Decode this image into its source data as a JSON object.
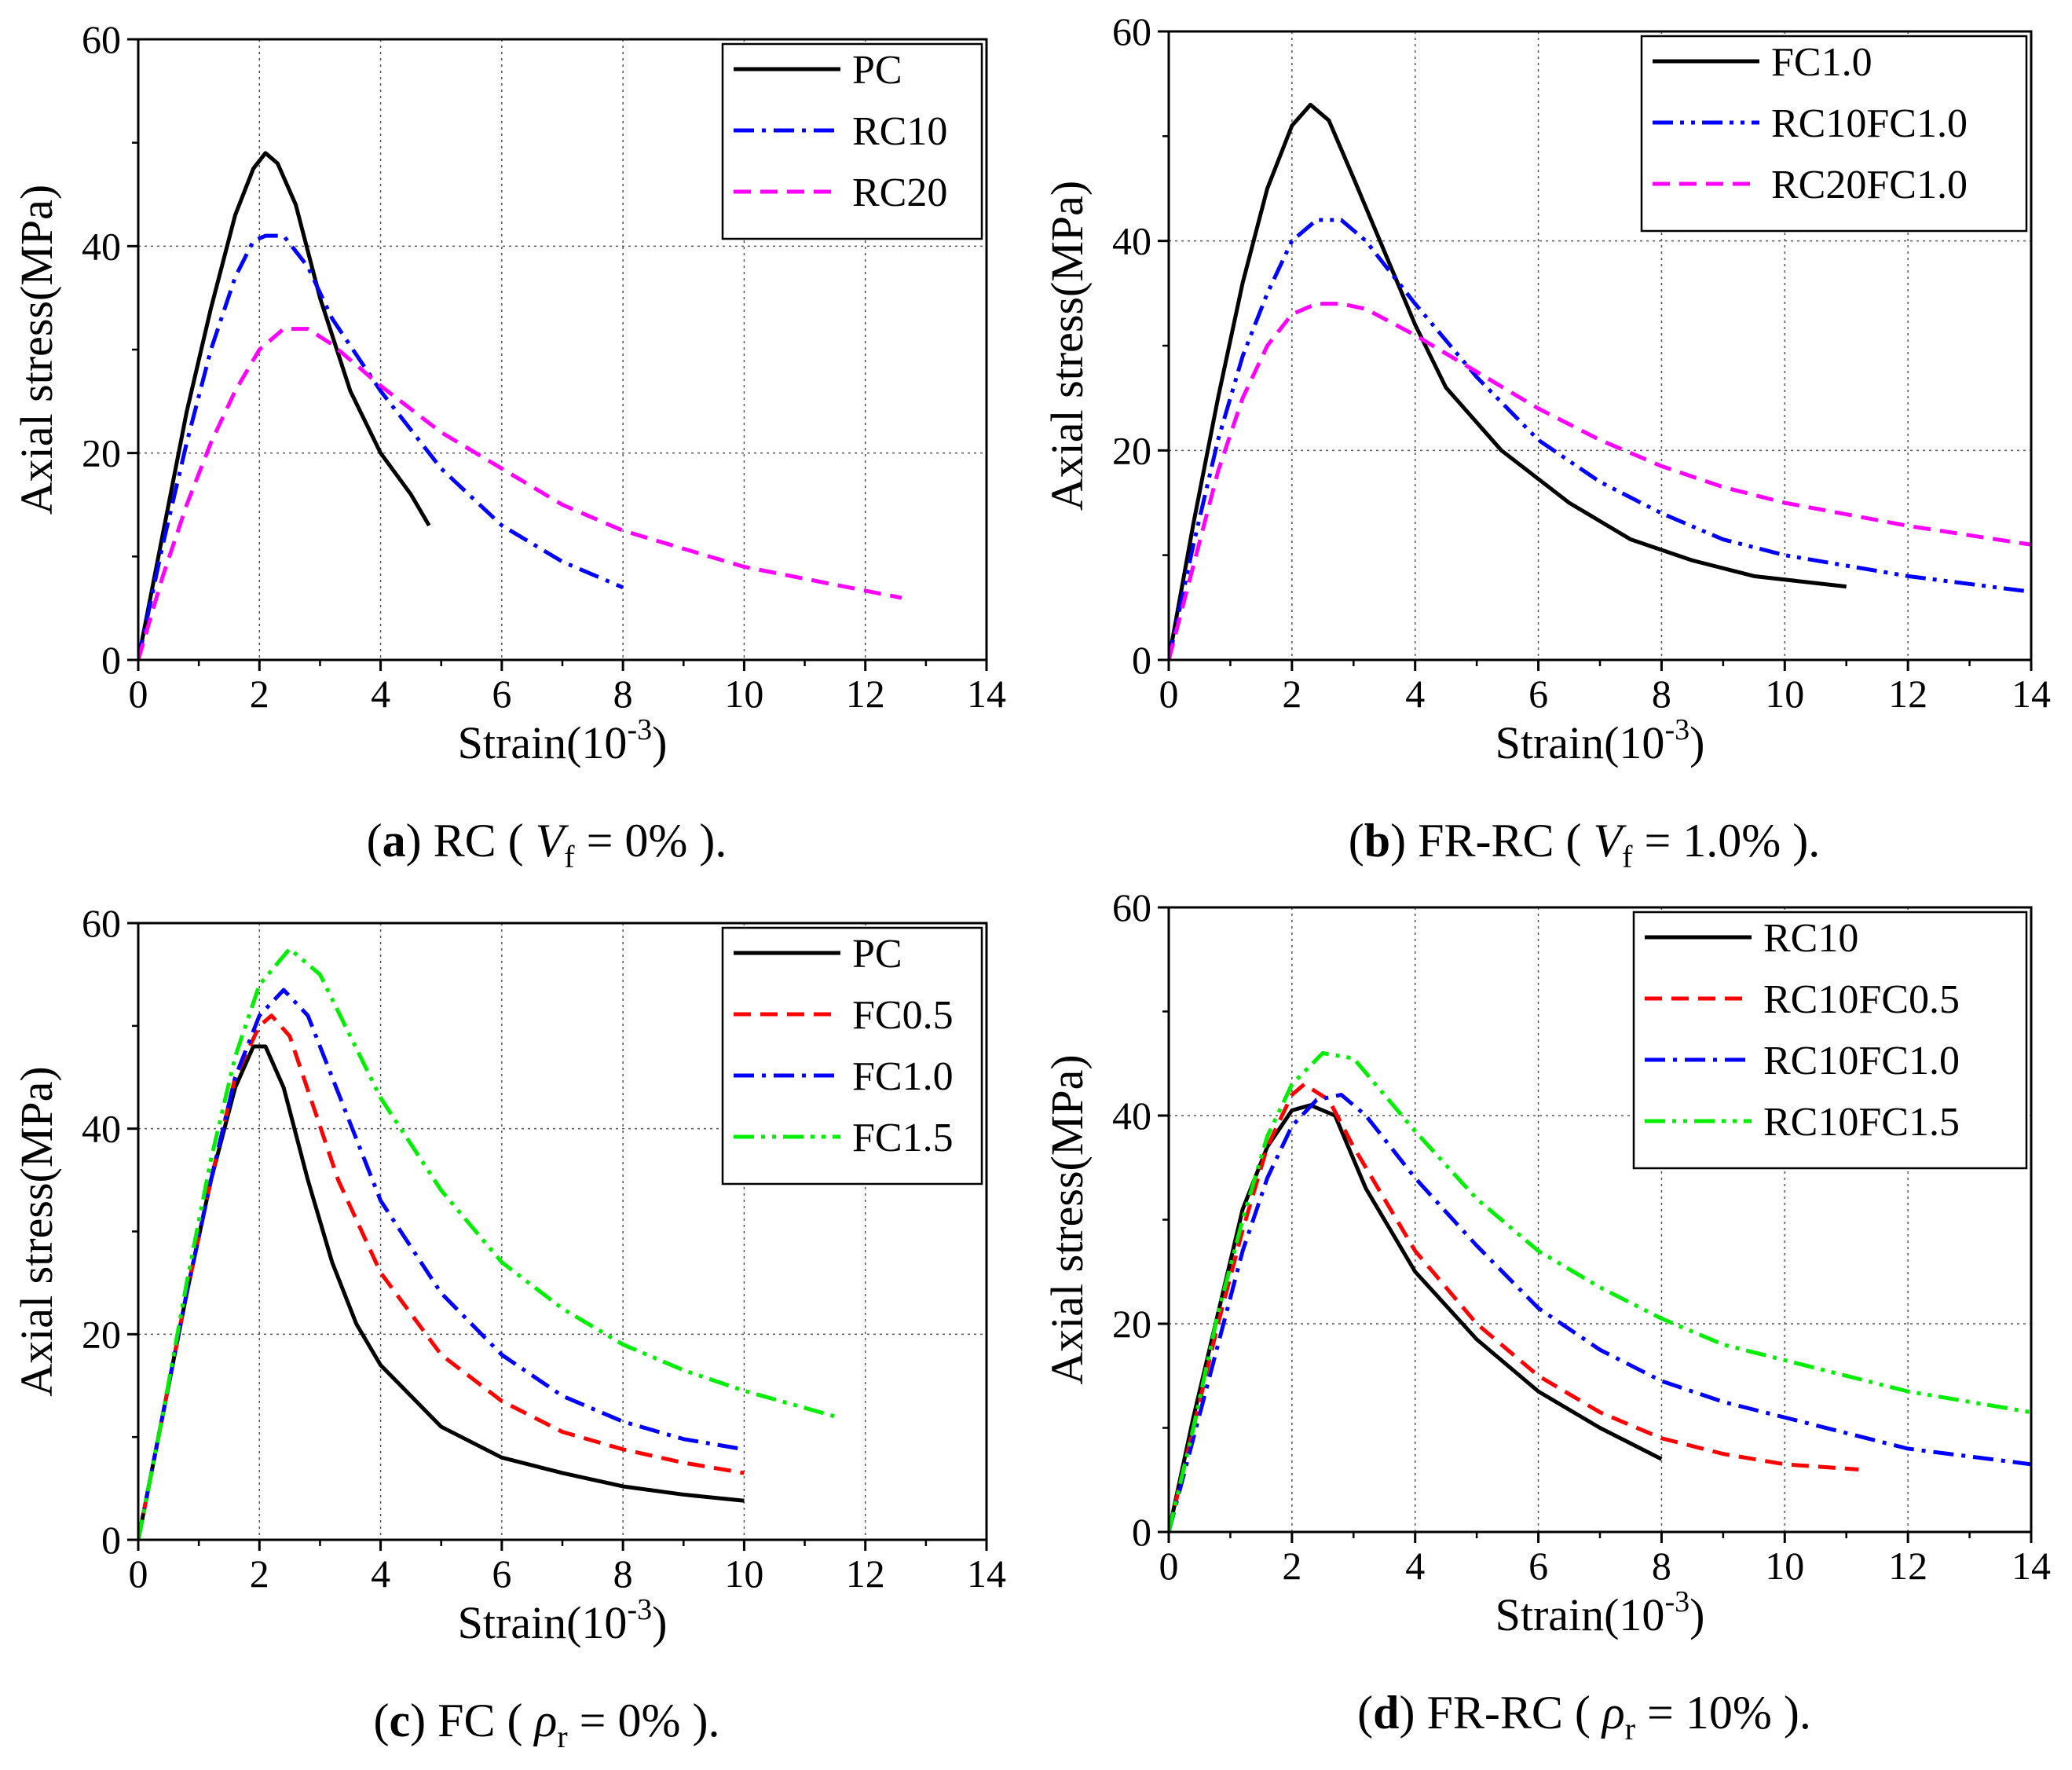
{
  "chart_data": [
    {
      "type": "line",
      "panel_label": "a",
      "caption": "RC (",
      "caption_var": "V",
      "caption_sub": "f",
      "caption_value": "= 0% ).",
      "xlabel": "Strain(10",
      "xlabel_exp": "-3",
      "xlabel_end": ")",
      "ylabel": "Axial stress(MPa)",
      "xlim": [
        0,
        14
      ],
      "ylim": [
        0,
        60
      ],
      "xticks": [
        "0",
        "2",
        "4",
        "6",
        "8",
        "10",
        "12",
        "14"
      ],
      "yticks": [
        "0",
        "20",
        "40",
        "60"
      ],
      "grid": true,
      "legend_position": "top-right",
      "series": [
        {
          "name": "PC",
          "color": "#000000",
          "dash": "solid",
          "x": [
            0,
            0.4,
            0.8,
            1.2,
            1.6,
            1.9,
            2.1,
            2.3,
            2.6,
            3.0,
            3.5,
            4.0,
            4.5,
            4.8
          ],
          "y": [
            0,
            12,
            24,
            34,
            43,
            47.5,
            49,
            48,
            44,
            35,
            26,
            20,
            16,
            13
          ]
        },
        {
          "name": "RC10",
          "color": "#0000ff",
          "dash": "dashdot",
          "x": [
            0,
            0.4,
            0.8,
            1.2,
            1.6,
            1.9,
            2.1,
            2.4,
            2.8,
            3.2,
            4.0,
            5.0,
            6.0,
            7.0,
            8.0
          ],
          "y": [
            0,
            11,
            21,
            30,
            37,
            40.5,
            41,
            41,
            38,
            33,
            26,
            18.5,
            13,
            9.5,
            7
          ]
        },
        {
          "name": "RC20",
          "color": "#ff00ff",
          "dash": "dashed",
          "x": [
            0,
            0.4,
            0.8,
            1.2,
            1.6,
            2.0,
            2.4,
            2.8,
            3.2,
            4.0,
            5.0,
            6.0,
            7.0,
            8.0,
            10.0,
            12.6
          ],
          "y": [
            0,
            8,
            15,
            21,
            26,
            30,
            32,
            32,
            30.5,
            26.5,
            22,
            18.5,
            15,
            12.5,
            9,
            6
          ]
        }
      ]
    },
    {
      "type": "line",
      "panel_label": "b",
      "caption": "FR-RC (",
      "caption_var": "V",
      "caption_sub": "f",
      "caption_value": "= 1.0% ).",
      "xlabel": "Strain(10",
      "xlabel_exp": "-3",
      "xlabel_end": ")",
      "ylabel": "Axial stress(MPa)",
      "xlim": [
        0,
        14
      ],
      "ylim": [
        0,
        60
      ],
      "xticks": [
        "0",
        "2",
        "4",
        "6",
        "8",
        "10",
        "12",
        "14"
      ],
      "yticks": [
        "0",
        "20",
        "40",
        "60"
      ],
      "grid": true,
      "legend_position": "top-right",
      "series": [
        {
          "name": "FC1.0",
          "color": "#000000",
          "dash": "solid",
          "x": [
            0,
            0.4,
            0.8,
            1.2,
            1.6,
            2.0,
            2.3,
            2.6,
            3.0,
            3.5,
            4.0,
            4.5,
            5.4,
            6.5,
            7.5,
            8.5,
            9.5,
            11.0
          ],
          "y": [
            0,
            13,
            25,
            36,
            45,
            51,
            53,
            51.5,
            46,
            39,
            32,
            26,
            20,
            15,
            11.5,
            9.5,
            8,
            7
          ]
        },
        {
          "name": "RC10FC1.0",
          "color": "#0000ff",
          "dash": "dashdotdot",
          "x": [
            0,
            0.4,
            0.8,
            1.2,
            1.6,
            2.0,
            2.4,
            2.8,
            3.2,
            4.0,
            5.0,
            6.0,
            7.0,
            8.0,
            9.0,
            10.0,
            12.0,
            14.0
          ],
          "y": [
            0,
            11,
            21,
            29,
            35,
            40,
            42,
            42,
            40,
            34,
            27,
            21,
            17,
            14,
            11.5,
            10,
            8,
            6.5
          ]
        },
        {
          "name": "RC20FC1.0",
          "color": "#ff00ff",
          "dash": "dashed",
          "x": [
            0,
            0.4,
            0.8,
            1.2,
            1.6,
            2.0,
            2.4,
            2.8,
            3.2,
            4.0,
            5.0,
            6.0,
            7.0,
            8.0,
            9.0,
            10.0,
            12.0,
            14.0
          ],
          "y": [
            0,
            9,
            18,
            25,
            30,
            33,
            34,
            34,
            33.5,
            31,
            27.5,
            24,
            21,
            18.5,
            16.5,
            15,
            12.8,
            11
          ]
        }
      ]
    },
    {
      "type": "line",
      "panel_label": "c",
      "caption": "FC (",
      "caption_var": "ρ",
      "caption_sub": "r",
      "caption_value": "= 0% ).",
      "xlabel": "Strain(10",
      "xlabel_exp": "-3",
      "xlabel_end": ")",
      "ylabel": "Axial stress(MPa)",
      "xlim": [
        0,
        14
      ],
      "ylim": [
        0,
        60
      ],
      "xticks": [
        "0",
        "2",
        "4",
        "6",
        "8",
        "10",
        "12",
        "14"
      ],
      "yticks": [
        "0",
        "20",
        "40",
        "60"
      ],
      "grid": true,
      "legend_position": "top-right",
      "series": [
        {
          "name": "PC",
          "color": "#000000",
          "dash": "solid",
          "x": [
            0,
            0.4,
            0.8,
            1.2,
            1.6,
            1.9,
            2.1,
            2.4,
            2.8,
            3.2,
            3.6,
            4.0,
            5.0,
            6.0,
            7.0,
            8.0,
            9.0,
            10.0
          ],
          "y": [
            0,
            12,
            24,
            35,
            44,
            48,
            48,
            44,
            35,
            27,
            21,
            17,
            11,
            8,
            6.5,
            5.2,
            4.4,
            3.8
          ]
        },
        {
          "name": "FC0.5",
          "color": "#ff0000",
          "dash": "dashed",
          "x": [
            0,
            0.4,
            0.8,
            1.2,
            1.6,
            2.0,
            2.2,
            2.5,
            2.9,
            3.3,
            4.0,
            5.0,
            6.0,
            7.0,
            8.0,
            9.0,
            10.0
          ],
          "y": [
            0,
            12,
            24,
            35,
            45,
            50,
            51,
            49,
            42,
            35,
            26,
            18,
            13.5,
            10.5,
            8.8,
            7.5,
            6.5
          ]
        },
        {
          "name": "FC1.0",
          "color": "#0000ff",
          "dash": "dashdot",
          "x": [
            0,
            0.4,
            0.8,
            1.2,
            1.6,
            2.0,
            2.4,
            2.8,
            3.2,
            4.0,
            5.0,
            6.0,
            7.0,
            8.0,
            9.0,
            10.0
          ],
          "y": [
            0,
            12,
            24,
            35,
            45,
            51,
            53.5,
            51,
            45,
            33,
            24,
            18,
            14,
            11.5,
            9.8,
            8.8
          ]
        },
        {
          "name": "FC1.5",
          "color": "#00ee00",
          "dash": "dashdotdot",
          "x": [
            0,
            0.4,
            0.8,
            1.2,
            1.6,
            2.0,
            2.5,
            3.0,
            3.5,
            4.0,
            5.0,
            6.0,
            7.0,
            8.0,
            9.0,
            10.0,
            11.5
          ],
          "y": [
            0,
            12,
            25,
            37,
            47,
            54,
            57.5,
            55,
            49,
            43,
            34,
            27,
            22.5,
            19,
            16.5,
            14.5,
            12
          ]
        }
      ]
    },
    {
      "type": "line",
      "panel_label": "d",
      "caption": "FR-RC (",
      "caption_var": "ρ",
      "caption_sub": "r",
      "caption_value": "= 10% ).",
      "xlabel": "Strain(10",
      "xlabel_exp": "-3",
      "xlabel_end": ")",
      "ylabel": "Axial stress(MPa)",
      "xlim": [
        0,
        14
      ],
      "ylim": [
        0,
        60
      ],
      "xticks": [
        "0",
        "2",
        "4",
        "6",
        "8",
        "10",
        "12",
        "14"
      ],
      "yticks": [
        "0",
        "20",
        "40",
        "60"
      ],
      "grid": true,
      "legend_position": "top-right",
      "series": [
        {
          "name": "RC10",
          "color": "#000000",
          "dash": "solid",
          "x": [
            0,
            0.4,
            0.8,
            1.2,
            1.6,
            2.0,
            2.3,
            2.7,
            3.2,
            4.0,
            5.0,
            6.0,
            7.0,
            8.0
          ],
          "y": [
            0,
            11,
            21,
            31,
            37,
            40.5,
            41,
            40,
            33,
            25,
            18.5,
            13.5,
            10,
            7
          ]
        },
        {
          "name": "RC10FC0.5",
          "color": "#ff0000",
          "dash": "dashed",
          "x": [
            0,
            0.4,
            0.8,
            1.2,
            1.6,
            2.0,
            2.2,
            2.6,
            3.0,
            4.0,
            5.0,
            6.0,
            7.0,
            8.0,
            9.0,
            10.0,
            11.2
          ],
          "y": [
            0,
            10,
            20,
            29,
            37,
            42,
            43,
            41.5,
            37,
            27,
            20,
            15,
            11.5,
            9,
            7.5,
            6.5,
            6
          ]
        },
        {
          "name": "RC10FC1.0",
          "color": "#0000ff",
          "dash": "dashdot",
          "x": [
            0,
            0.4,
            0.8,
            1.2,
            1.6,
            2.0,
            2.4,
            2.8,
            3.2,
            4.0,
            5.0,
            6.0,
            7.0,
            8.0,
            9.0,
            10.0,
            12.0,
            14.0
          ],
          "y": [
            0,
            9,
            18,
            27,
            34,
            39,
            41.5,
            42,
            40,
            34,
            27.5,
            21.5,
            17.5,
            14.5,
            12.5,
            11,
            8,
            6.5
          ]
        },
        {
          "name": "RC10FC1.5",
          "color": "#00ee00",
          "dash": "dashdotdot",
          "x": [
            0,
            0.4,
            0.8,
            1.2,
            1.6,
            2.0,
            2.5,
            3.0,
            3.5,
            4.0,
            5.0,
            6.0,
            7.0,
            8.0,
            9.0,
            10.0,
            12.0,
            14.0
          ],
          "y": [
            0,
            10,
            21,
            30,
            38,
            43,
            46,
            45.5,
            42,
            38.5,
            32,
            27,
            23.5,
            20.5,
            18,
            16.5,
            13.5,
            11.5
          ]
        }
      ]
    }
  ]
}
